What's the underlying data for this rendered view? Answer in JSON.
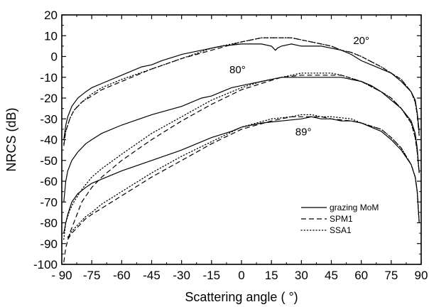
{
  "chart_data": {
    "type": "line",
    "xlabel": "Scattering angle ( °)",
    "ylabel": "NRCS (dB)",
    "xlim": [
      -90,
      90
    ],
    "ylim": [
      -100,
      20
    ],
    "grid": false,
    "legend_position": "bottom-right",
    "x_ticks": [
      -90,
      -75,
      -60,
      -45,
      -30,
      -15,
      0,
      15,
      30,
      45,
      60,
      75,
      90
    ],
    "x_tick_labels": [
      "- 90",
      "-75",
      "-60",
      "-45",
      "-30",
      "-15",
      "0",
      "15",
      "30",
      "45",
      "60",
      "75",
      "90"
    ],
    "y_ticks": [
      20,
      10,
      0,
      -10,
      -20,
      -30,
      -40,
      -50,
      -60,
      -70,
      -80,
      -90,
      -100
    ],
    "y_tick_labels": [
      "20",
      "10",
      "0",
      "-10",
      "-20",
      "-30",
      "-40",
      "-50",
      "-60",
      "-70",
      "-80",
      "-90",
      "-100"
    ],
    "legend": [
      {
        "label": "grazing MoM",
        "style": "solid"
      },
      {
        "label": "SPM1",
        "style": "dashed"
      },
      {
        "label": "SSA1",
        "style": "dotted"
      }
    ],
    "annotations": [
      {
        "text": "20°",
        "x": 60,
        "y": 6
      },
      {
        "text": "80°",
        "x": -2,
        "y": -8
      },
      {
        "text": "89°",
        "x": 31,
        "y": -38
      }
    ],
    "groups": [
      {
        "incidence": "20°",
        "series": [
          {
            "method": "grazing MoM",
            "style": "solid",
            "x": [
              -89,
              -88,
              -87,
              -85,
              -82,
              -78,
              -75,
              -70,
              -60,
              -50,
              -45,
              -40,
              -30,
              -20,
              -10,
              0,
              5,
              10,
              15,
              17,
              18,
              20,
              25,
              30,
              35,
              40,
              45,
              50,
              55,
              60,
              65,
              70,
              75,
              80,
              85,
              87,
              88,
              89
            ],
            "y": [
              -40,
              -33,
              -29,
              -24,
              -20,
              -17,
              -15,
              -13,
              -9,
              -5,
              -4,
              -2,
              1,
              3,
              5,
              6,
              6,
              6,
              5,
              3,
              4,
              5,
              6,
              5,
              5,
              5,
              4,
              3,
              1,
              -2,
              -4,
              -6,
              -8,
              -12,
              -17,
              -21,
              -27,
              -36
            ]
          },
          {
            "method": "SPM1",
            "style": "dashed",
            "x": [
              -89,
              -88,
              -86,
              -84,
              -80,
              -75,
              -70,
              -60,
              -45,
              -30,
              -15,
              0,
              5,
              10,
              15,
              20,
              25,
              30,
              35,
              40,
              45,
              50,
              55,
              60,
              70,
              75,
              80,
              85,
              87,
              88,
              89
            ],
            "y": [
              -43,
              -36,
              -30,
              -26,
              -22,
              -19,
              -16,
              -12,
              -6,
              -1,
              3,
              7,
              8,
              9,
              9,
              9,
              9,
              8,
              7,
              6,
              5,
              3,
              2,
              0,
              -5,
              -8,
              -11,
              -17,
              -22,
              -28,
              -38
            ]
          },
          {
            "method": "SSA1",
            "style": "dotted",
            "x": [
              -89,
              -88,
              -86,
              -84,
              -80,
              -75,
              -70,
              -60,
              -45,
              -30,
              -15,
              0,
              5,
              10,
              15,
              20,
              25,
              30,
              35,
              40,
              45,
              50,
              55,
              60,
              70,
              75,
              80,
              85,
              87,
              88,
              89
            ],
            "y": [
              -42,
              -36,
              -30,
              -26,
              -22,
              -18,
              -15,
              -11,
              -6,
              -1,
              4,
              7,
              8,
              9,
              9,
              9,
              9,
              8,
              7,
              6,
              5,
              3,
              2,
              0,
              -5,
              -8,
              -11,
              -17,
              -22,
              -28,
              -38
            ]
          }
        ]
      },
      {
        "incidence": "80°",
        "series": [
          {
            "method": "grazing MoM",
            "style": "solid",
            "x": [
              -89,
              -88,
              -87,
              -85,
              -82,
              -78,
              -75,
              -70,
              -60,
              -45,
              -30,
              -20,
              -15,
              -10,
              -5,
              0,
              10,
              20,
              30,
              40,
              45,
              50,
              60,
              65,
              70,
              75,
              80,
              85,
              87,
              88,
              89
            ],
            "y": [
              -70,
              -60,
              -55,
              -50,
              -46,
              -42,
              -40,
              -37,
              -33,
              -28,
              -24,
              -20,
              -19,
              -17,
              -15,
              -14,
              -12,
              -10,
              -10,
              -10,
              -10,
              -10,
              -12,
              -14,
              -17,
              -21,
              -25,
              -31,
              -37,
              -44,
              -56
            ]
          },
          {
            "method": "SPM1",
            "style": "dashed",
            "x": [
              -89,
              -88,
              -86,
              -84,
              -82,
              -80,
              -75,
              -70,
              -60,
              -45,
              -30,
              -15,
              0,
              10,
              20,
              30,
              35,
              40,
              45,
              50,
              60,
              70,
              75,
              80,
              85,
              87,
              88,
              89
            ],
            "y": [
              -99,
              -92,
              -85,
              -80,
              -75,
              -70,
              -63,
              -58,
              -50,
              -40,
              -31,
              -23,
              -16,
              -13,
              -10,
              -9,
              -9,
              -9,
              -9,
              -9,
              -12,
              -17,
              -20,
              -25,
              -32,
              -39,
              -46,
              -56
            ]
          },
          {
            "method": "SSA1",
            "style": "dotted",
            "x": [
              -89,
              -88,
              -86,
              -84,
              -82,
              -80,
              -75,
              -70,
              -60,
              -45,
              -30,
              -15,
              0,
              10,
              20,
              30,
              35,
              40,
              45,
              50,
              60,
              70,
              75,
              80,
              85,
              87,
              88,
              89
            ],
            "y": [
              -88,
              -80,
              -74,
              -70,
              -67,
              -64,
              -58,
              -54,
              -47,
              -37,
              -29,
              -21,
              -15,
              -12,
              -10,
              -8,
              -8,
              -8,
              -8,
              -9,
              -12,
              -17,
              -20,
              -25,
              -32,
              -39,
              -46,
              -56
            ]
          }
        ]
      },
      {
        "incidence": "89°",
        "series": [
          {
            "method": "grazing MoM",
            "style": "solid",
            "x": [
              -89,
              -88,
              -87,
              -85,
              -82,
              -78,
              -75,
              -70,
              -60,
              -45,
              -30,
              -15,
              -5,
              0,
              10,
              20,
              30,
              35,
              40,
              45,
              50,
              55,
              60,
              70,
              75,
              80,
              85,
              87,
              88,
              89
            ],
            "y": [
              -85,
              -80,
              -76,
              -70,
              -66,
              -63,
              -61,
              -59,
              -55,
              -50,
              -45,
              -39,
              -36,
              -34,
              -32,
              -31,
              -30,
              -29,
              -30,
              -30,
              -31,
              -31,
              -32,
              -36,
              -40,
              -45,
              -52,
              -58,
              -65,
              -80
            ]
          },
          {
            "method": "SPM1",
            "style": "dashed",
            "x": [
              -87,
              -85,
              -82,
              -78,
              -75,
              -70,
              -60,
              -45,
              -30,
              -15,
              0,
              15,
              25,
              30,
              35,
              40,
              45,
              55,
              60,
              70,
              75,
              80,
              85,
              87,
              88,
              89
            ],
            "y": [
              -88,
              -85,
              -82,
              -78,
              -76,
              -73,
              -67,
              -58,
              -50,
              -42,
              -35,
              -31,
              -29,
              -29,
              -29,
              -29,
              -30,
              -31,
              -32,
              -35,
              -39,
              -44,
              -52,
              -58,
              -65,
              -80
            ]
          },
          {
            "method": "SSA1",
            "style": "dotted",
            "x": [
              -87,
              -85,
              -82,
              -78,
              -75,
              -70,
              -60,
              -45,
              -30,
              -15,
              0,
              15,
              25,
              30,
              35,
              40,
              45,
              55,
              60,
              70,
              75,
              80,
              85,
              87,
              88,
              89
            ],
            "y": [
              -87,
              -84,
              -81,
              -77,
              -75,
              -71,
              -65,
              -56,
              -48,
              -41,
              -34,
              -30,
              -29,
              -28,
              -28,
              -29,
              -29,
              -30,
              -32,
              -35,
              -39,
              -44,
              -52,
              -58,
              -65,
              -80
            ]
          }
        ]
      }
    ]
  }
}
